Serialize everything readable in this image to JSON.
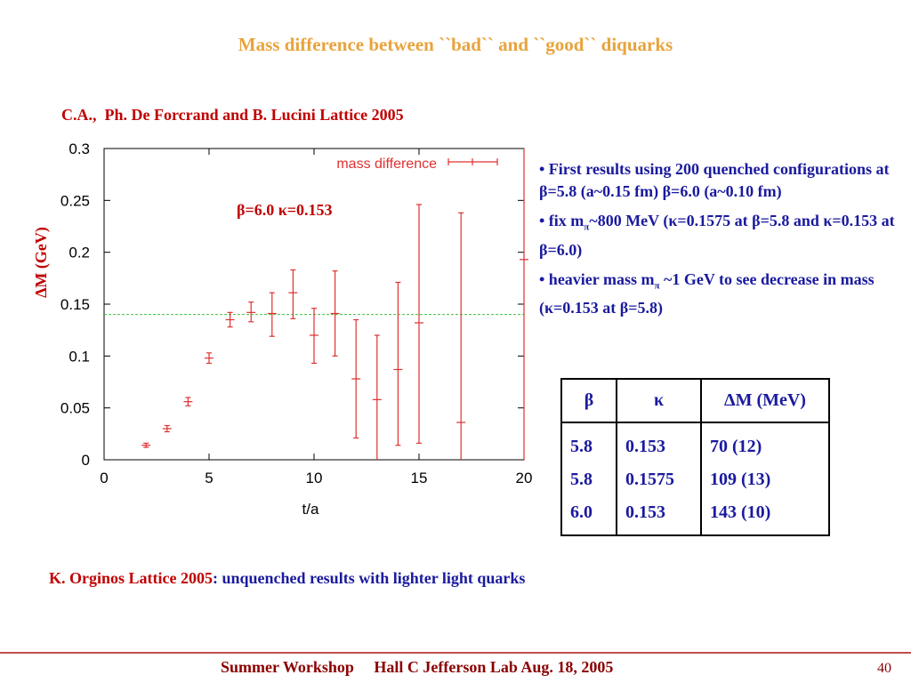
{
  "slide": {
    "title": "Mass difference between ``bad`` and ``good`` diquarks",
    "citation": "C.A.,  Ph. De Forcrand and B. Lucini Lattice 2005"
  },
  "bullets": [
    {
      "text": "• First results using 200 quenched configurations at β=5.8 (a~0.15 fm) β=6.0 (a~0.10 fm)"
    },
    {
      "pre": "• fix m",
      "sub": "π",
      "post": "~800 MeV (κ=0.1575 at β=5.8 and κ=0.153 at β=6.0)"
    },
    {
      "pre": "• heavier mass m",
      "sub": "π",
      "post": " ~1 GeV to see decrease in mass (κ=0.153 at β=5.8)"
    }
  ],
  "table": {
    "headers": [
      "β",
      "κ",
      "ΔM (MeV)"
    ],
    "rows": [
      [
        "5.8",
        "0.153",
        "70 (12)"
      ],
      [
        "5.8",
        "0.1575",
        "109 (13)"
      ],
      [
        "6.0",
        "0.153",
        "143 (10)"
      ]
    ]
  },
  "orginos": {
    "label": "K. Orginos Lattice 2005",
    "colon": ":",
    "text": " unquenched results with lighter light quarks"
  },
  "footer": {
    "text": "Summer Workshop     Hall C Jefferson Lab Aug. 18, 2005",
    "page": "40"
  },
  "chart_data": {
    "type": "scatter",
    "xlabel": "t/a",
    "ylabel": "ΔM (GeV)",
    "xlim": [
      0,
      20
    ],
    "ylim": [
      0,
      0.3
    ],
    "xticks": [
      "0",
      "5",
      "10",
      "15",
      "20"
    ],
    "yticks": [
      "0",
      "0.05",
      "0.1",
      "0.15",
      "0.2",
      "0.25",
      "0.3"
    ],
    "annotation": "β=6.0 κ=0.153",
    "grid": false,
    "legend_position": "top-right",
    "colors": {
      "series": "#e03030",
      "reference": "#40c040",
      "ylabel": "#c00000",
      "annotation": "#c00000"
    },
    "series": [
      {
        "name": "mass difference",
        "x": [
          2,
          3,
          4,
          5,
          6,
          7,
          8,
          9,
          10,
          11,
          12,
          13,
          14,
          15,
          17,
          20
        ],
        "y": [
          0.014,
          0.03,
          0.056,
          0.098,
          0.135,
          0.142,
          0.141,
          0.161,
          0.12,
          0.141,
          0.078,
          0.058,
          0.087,
          0.132,
          0.036,
          0.193
        ],
        "yerr_low": [
          0.002,
          0.003,
          0.004,
          0.005,
          0.007,
          0.009,
          0.022,
          0.025,
          0.027,
          0.041,
          0.057,
          0.062,
          0.073,
          0.116,
          0.036,
          0.193
        ],
        "yerr_high": [
          0.002,
          0.003,
          0.004,
          0.005,
          0.007,
          0.01,
          0.02,
          0.022,
          0.026,
          0.041,
          0.057,
          0.062,
          0.084,
          0.114,
          0.202,
          0.107
        ]
      }
    ],
    "reference_line": {
      "y": 0.14
    }
  }
}
